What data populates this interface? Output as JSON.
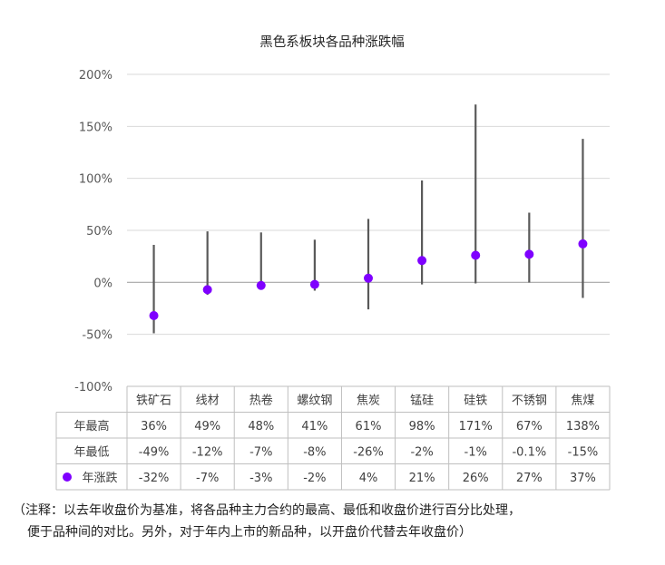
{
  "chart_data": {
    "type": "line",
    "title": "黑色系板块各品种涨跌幅",
    "ylim": [
      -100,
      200
    ],
    "yticks": [
      -100,
      -50,
      0,
      50,
      100,
      150,
      200
    ],
    "ytick_labels": [
      "-100%",
      "-50%",
      "0%",
      "50%",
      "100%",
      "150%",
      "200%"
    ],
    "grid": true,
    "categories": [
      "铁矿石",
      "线材",
      "热卷",
      "螺纹钢",
      "焦炭",
      "锰硅",
      "硅铁",
      "不锈钢",
      "焦煤"
    ],
    "series": [
      {
        "name": "年最高",
        "values": [
          36,
          49,
          48,
          41,
          61,
          98,
          171,
          67,
          138
        ],
        "labels": [
          "36%",
          "49%",
          "48%",
          "41%",
          "61%",
          "98%",
          "171%",
          "67%",
          "138%"
        ]
      },
      {
        "name": "年最低",
        "values": [
          -49,
          -12,
          -7,
          -8,
          -26,
          -2,
          -1,
          -0.1,
          -15
        ],
        "labels": [
          "-49%",
          "-12%",
          "-7%",
          "-8%",
          "-26%",
          "-2%",
          "-1%",
          "-0.1%",
          "-15%"
        ]
      },
      {
        "name": "年涨跌",
        "values": [
          -32,
          -7,
          -3,
          -2,
          4,
          21,
          26,
          27,
          37
        ],
        "labels": [
          "-32%",
          "-7%",
          "-3%",
          "-2%",
          "4%",
          "21%",
          "26%",
          "27%",
          "37%"
        ]
      }
    ],
    "colors": {
      "range_line": "#595959",
      "marker": "#7F00FF",
      "grid": "#D9D9D9",
      "zero_line": "#A6A6A6",
      "table_border": "#BFBFBF"
    }
  },
  "note": {
    "line1": "（注释：以去年收盘价为基准，将各品种主力合约的最高、最低和收盘价进行百分比处理，",
    "line2": "便于品种间的对比。另外，对于年内上市的新品种，以开盘价代替去年收盘价）"
  }
}
